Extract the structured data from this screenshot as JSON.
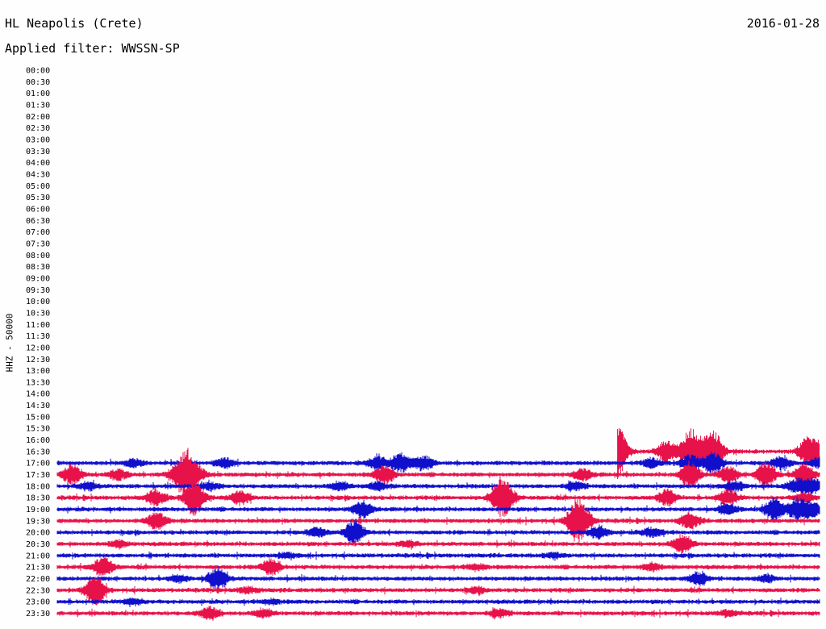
{
  "header": {
    "station": "HL Neapolis (Crete)",
    "date": "2016-01-28",
    "filter": "Applied filter: WWSSN-SP"
  },
  "chart_data": {
    "type": "line",
    "title": "HL Neapolis (Crete)",
    "subtitle": "Applied filter: WWSSN-SP",
    "ylabel": "HHZ - 50000",
    "colors": [
      "#1010cc",
      "#e8124a"
    ],
    "row_labels": [
      "00:00",
      "00:30",
      "01:00",
      "01:30",
      "02:00",
      "02:30",
      "03:00",
      "03:30",
      "04:00",
      "04:30",
      "05:00",
      "05:30",
      "06:00",
      "06:30",
      "07:00",
      "07:30",
      "08:00",
      "08:30",
      "09:00",
      "09:30",
      "10:00",
      "10:30",
      "11:00",
      "11:30",
      "12:00",
      "12:30",
      "13:00",
      "13:30",
      "14:00",
      "14:30",
      "15:00",
      "15:30",
      "16:00",
      "16:30",
      "17:00",
      "17:30",
      "18:00",
      "18:30",
      "19:00",
      "19:30",
      "20:00",
      "20:30",
      "21:00",
      "21:30",
      "22:00",
      "22:30",
      "23:00",
      "23:30"
    ],
    "series": [
      {
        "row": "16:30",
        "start_fraction": 0.735,
        "events": [
          [
            0.735,
            3.5
          ],
          [
            0.8,
            1.4
          ],
          [
            0.83,
            1.9
          ],
          [
            0.835,
            1.5
          ],
          [
            0.86,
            3.0
          ],
          [
            0.985,
            1.8
          ],
          [
            1.0,
            1.0
          ]
        ]
      },
      {
        "row": "17:00",
        "start_fraction": 0.0,
        "events": [
          [
            0.1,
            0.5
          ],
          [
            0.22,
            0.6
          ],
          [
            0.42,
            0.8
          ],
          [
            0.45,
            1.2
          ],
          [
            0.48,
            1.0
          ],
          [
            0.78,
            0.6
          ],
          [
            0.83,
            1.0
          ],
          [
            0.86,
            1.5
          ],
          [
            0.95,
            0.8
          ],
          [
            1.0,
            0.7
          ]
        ]
      },
      {
        "row": "17:30",
        "start_fraction": 0.0,
        "events": [
          [
            0.02,
            1.3
          ],
          [
            0.08,
            0.7
          ],
          [
            0.16,
            1.4
          ],
          [
            0.17,
            1.8
          ],
          [
            0.18,
            1.3
          ],
          [
            0.43,
            1.3
          ],
          [
            0.69,
            0.7
          ],
          [
            0.83,
            1.7
          ],
          [
            0.88,
            1.0
          ],
          [
            0.93,
            1.7
          ],
          [
            0.98,
            1.5
          ]
        ]
      },
      {
        "row": "18:00",
        "start_fraction": 0.0,
        "events": [
          [
            0.04,
            0.5
          ],
          [
            0.2,
            0.5
          ],
          [
            0.37,
            0.6
          ],
          [
            0.42,
            0.5
          ],
          [
            0.68,
            0.5
          ],
          [
            0.89,
            0.6
          ],
          [
            0.97,
            0.9
          ],
          [
            0.99,
            1.0
          ]
        ]
      },
      {
        "row": "18:30",
        "start_fraction": 0.0,
        "events": [
          [
            0.13,
            1.0
          ],
          [
            0.18,
            2.5
          ],
          [
            0.24,
            0.9
          ],
          [
            0.58,
            1.7
          ],
          [
            0.59,
            1.3
          ],
          [
            0.8,
            1.0
          ],
          [
            0.88,
            1.0
          ],
          [
            0.98,
            0.7
          ]
        ]
      },
      {
        "row": "19:00",
        "start_fraction": 0.0,
        "events": [
          [
            0.4,
            1.0
          ],
          [
            0.88,
            0.6
          ],
          [
            0.94,
            1.5
          ],
          [
            0.97,
            1.4
          ],
          [
            0.99,
            1.0
          ]
        ]
      },
      {
        "row": "19:30",
        "start_fraction": 0.0,
        "events": [
          [
            0.13,
            1.2
          ],
          [
            0.68,
            2.0
          ],
          [
            0.69,
            1.5
          ],
          [
            0.83,
            1.0
          ]
        ]
      },
      {
        "row": "20:00",
        "start_fraction": 0.0,
        "events": [
          [
            0.34,
            0.6
          ],
          [
            0.39,
            1.5
          ],
          [
            0.71,
            0.8
          ],
          [
            0.78,
            0.6
          ]
        ]
      },
      {
        "row": "20:30",
        "start_fraction": 0.0,
        "events": [
          [
            0.08,
            0.4
          ],
          [
            0.46,
            0.4
          ],
          [
            0.82,
            1.3
          ]
        ]
      },
      {
        "row": "21:00",
        "start_fraction": 0.0,
        "events": [
          [
            0.3,
            0.3
          ],
          [
            0.65,
            0.3
          ]
        ]
      },
      {
        "row": "21:30",
        "start_fraction": 0.0,
        "events": [
          [
            0.06,
            1.3
          ],
          [
            0.28,
            1.0
          ],
          [
            0.55,
            0.4
          ],
          [
            0.78,
            0.5
          ]
        ]
      },
      {
        "row": "22:00",
        "start_fraction": 0.0,
        "events": [
          [
            0.16,
            0.4
          ],
          [
            0.21,
            1.5
          ],
          [
            0.84,
            0.8
          ],
          [
            0.93,
            0.4
          ]
        ]
      },
      {
        "row": "22:30",
        "start_fraction": 0.0,
        "events": [
          [
            0.05,
            2.0
          ],
          [
            0.25,
            0.4
          ],
          [
            0.55,
            0.3
          ]
        ]
      },
      {
        "row": "23:00",
        "start_fraction": 0.0,
        "events": [
          [
            0.1,
            0.4
          ],
          [
            0.28,
            0.3
          ]
        ]
      },
      {
        "row": "23:30",
        "start_fraction": 0.0,
        "events": [
          [
            0.2,
            0.8
          ],
          [
            0.27,
            0.6
          ],
          [
            0.58,
            0.5
          ],
          [
            0.88,
            0.4
          ]
        ]
      }
    ]
  }
}
